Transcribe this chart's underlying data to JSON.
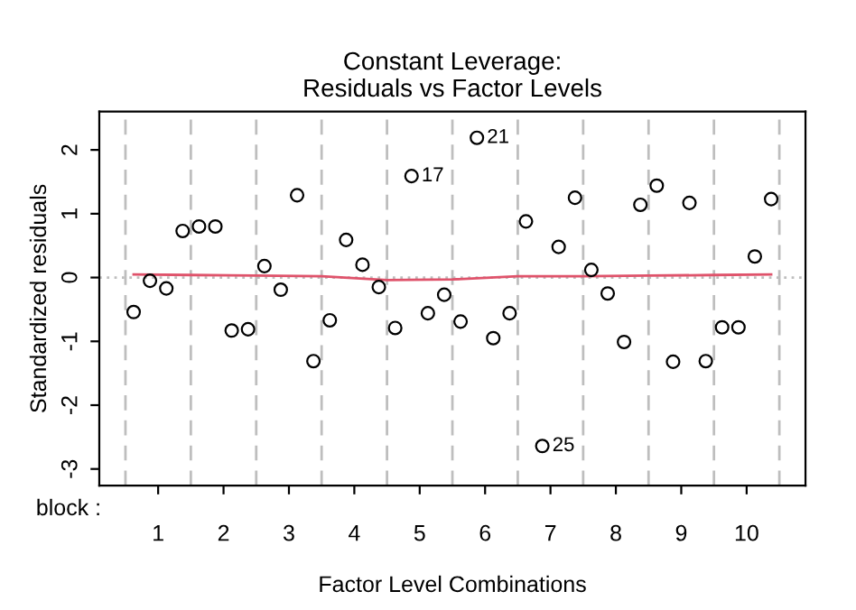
{
  "chart_data": {
    "type": "scatter",
    "title": "Constant Leverage:\nResiduals vs Factor Levels",
    "xlabel": "Factor Level Combinations",
    "ylabel": "Standardized residuals",
    "xlim": [
      0.1,
      10.9
    ],
    "xticks": [
      1,
      2,
      3,
      4,
      5,
      6,
      7,
      8,
      9,
      10
    ],
    "ylim": [
      -3.26,
      2.6
    ],
    "yticks": [
      -3,
      -2,
      -1,
      0,
      1,
      2
    ],
    "grid": false,
    "marker": "circle",
    "series": [
      {
        "color": "#000000",
        "x": [
          0.625,
          0.875,
          1.125,
          1.375,
          1.625,
          1.875,
          2.125,
          2.375,
          2.625,
          2.875,
          3.125,
          3.375,
          3.625,
          3.875,
          4.125,
          4.375,
          4.625,
          4.875,
          5.125,
          5.375,
          5.625,
          5.875,
          6.125,
          6.375,
          6.625,
          6.875,
          7.125,
          7.375,
          7.625,
          7.875,
          8.125,
          8.375,
          8.625,
          8.875,
          9.125,
          9.375,
          9.625,
          9.875,
          10.125,
          10.375
        ],
        "values": [
          -0.54,
          -0.05,
          -0.17,
          0.73,
          0.8,
          0.8,
          -0.83,
          -0.81,
          0.18,
          -0.19,
          1.29,
          -1.31,
          -0.67,
          0.59,
          0.2,
          -0.15,
          -0.79,
          1.59,
          -0.56,
          -0.27,
          -0.69,
          2.19,
          -0.95,
          -0.56,
          0.88,
          -2.64,
          0.48,
          1.25,
          0.12,
          -0.25,
          -1.01,
          1.14,
          1.44,
          -1.32,
          1.17,
          -1.31,
          -0.78,
          -0.78,
          0.33,
          1.23
        ]
      },
      {
        "type": "line",
        "color": "#df536b",
        "marker": "none",
        "x": [
          0.625,
          1.5,
          2.5,
          3.5,
          4.5,
          5.5,
          6.5,
          7.5,
          8.5,
          9.5,
          10.375
        ],
        "values": [
          0.05,
          0.04,
          0.03,
          0.02,
          -0.04,
          -0.03,
          0.02,
          0.02,
          0.03,
          0.04,
          0.05
        ]
      }
    ],
    "ref_lines": [
      {
        "axis": "y",
        "value": 0,
        "color": "#bebebe",
        "line_style": "dotted"
      },
      {
        "axis": "x",
        "value": 0.5,
        "color": "#bebebe",
        "line_style": "dashed"
      },
      {
        "axis": "x",
        "value": 1.5,
        "color": "#bebebe",
        "line_style": "dashed"
      },
      {
        "axis": "x",
        "value": 2.5,
        "color": "#bebebe",
        "line_style": "dashed"
      },
      {
        "axis": "x",
        "value": 3.5,
        "color": "#bebebe",
        "line_style": "dashed"
      },
      {
        "axis": "x",
        "value": 4.5,
        "color": "#bebebe",
        "line_style": "dashed"
      },
      {
        "axis": "x",
        "value": 5.5,
        "color": "#bebebe",
        "line_style": "dashed"
      },
      {
        "axis": "x",
        "value": 6.5,
        "color": "#bebebe",
        "line_style": "dashed"
      },
      {
        "axis": "x",
        "value": 7.5,
        "color": "#bebebe",
        "line_style": "dashed"
      },
      {
        "axis": "x",
        "value": 8.5,
        "color": "#bebebe",
        "line_style": "dashed"
      },
      {
        "axis": "x",
        "value": 9.5,
        "color": "#bebebe",
        "line_style": "dashed"
      },
      {
        "axis": "x",
        "value": 10.5,
        "color": "#bebebe",
        "line_style": "dashed"
      }
    ],
    "annotations": [
      {
        "text": "17",
        "x": 4.875,
        "y": 1.59
      },
      {
        "text": "21",
        "x": 5.875,
        "y": 2.19
      },
      {
        "text": "25",
        "x": 6.875,
        "y": -2.64
      },
      "block :"
    ]
  }
}
